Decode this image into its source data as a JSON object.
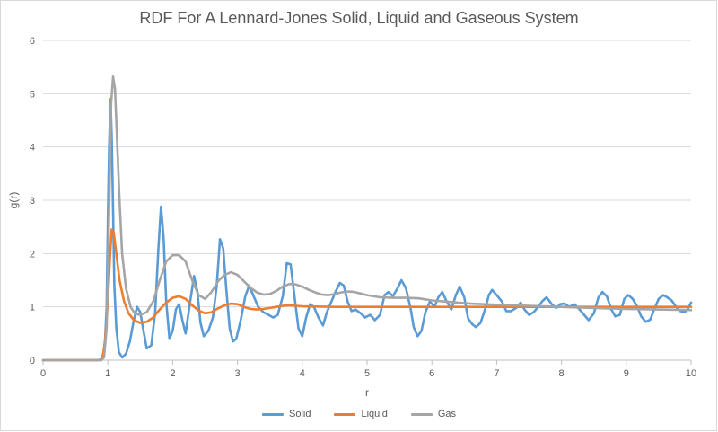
{
  "chart_data": {
    "type": "line",
    "title": "RDF For A Lennard-Jones Solid, Liquid and Gaseous System",
    "xlabel": "r",
    "ylabel": "g(r)",
    "xlim": [
      0,
      10
    ],
    "ylim": [
      0,
      6
    ],
    "x_ticks": [
      "0",
      "1",
      "2",
      "3",
      "4",
      "5",
      "6",
      "7",
      "8",
      "9",
      "10"
    ],
    "y_ticks": [
      "0",
      "1",
      "2",
      "3",
      "4",
      "5",
      "6"
    ],
    "grid": "horizontal",
    "legend_position": "bottom",
    "series": [
      {
        "name": "Solid",
        "color": "#5b9bd5",
        "points": [
          [
            0,
            0
          ],
          [
            0.85,
            0
          ],
          [
            0.9,
            0.02
          ],
          [
            0.95,
            0.2
          ],
          [
            0.98,
            1.0
          ],
          [
            1.0,
            2.6
          ],
          [
            1.02,
            4.0
          ],
          [
            1.04,
            4.9
          ],
          [
            1.06,
            4.2
          ],
          [
            1.08,
            2.8
          ],
          [
            1.1,
            1.4
          ],
          [
            1.13,
            0.6
          ],
          [
            1.17,
            0.15
          ],
          [
            1.22,
            0.05
          ],
          [
            1.28,
            0.12
          ],
          [
            1.34,
            0.35
          ],
          [
            1.4,
            0.75
          ],
          [
            1.45,
            1.0
          ],
          [
            1.5,
            0.9
          ],
          [
            1.55,
            0.55
          ],
          [
            1.6,
            0.22
          ],
          [
            1.67,
            0.28
          ],
          [
            1.73,
            0.9
          ],
          [
            1.78,
            2.1
          ],
          [
            1.82,
            2.88
          ],
          [
            1.86,
            2.3
          ],
          [
            1.9,
            1.1
          ],
          [
            1.95,
            0.4
          ],
          [
            2.0,
            0.55
          ],
          [
            2.05,
            0.95
          ],
          [
            2.1,
            1.05
          ],
          [
            2.15,
            0.75
          ],
          [
            2.2,
            0.5
          ],
          [
            2.27,
            1.1
          ],
          [
            2.33,
            1.58
          ],
          [
            2.38,
            1.3
          ],
          [
            2.43,
            0.7
          ],
          [
            2.48,
            0.45
          ],
          [
            2.55,
            0.55
          ],
          [
            2.62,
            0.8
          ],
          [
            2.68,
            1.4
          ],
          [
            2.73,
            2.27
          ],
          [
            2.78,
            2.1
          ],
          [
            2.83,
            1.3
          ],
          [
            2.88,
            0.6
          ],
          [
            2.93,
            0.35
          ],
          [
            2.98,
            0.4
          ],
          [
            3.05,
            0.75
          ],
          [
            3.12,
            1.2
          ],
          [
            3.18,
            1.4
          ],
          [
            3.25,
            1.2
          ],
          [
            3.32,
            1.0
          ],
          [
            3.4,
            0.9
          ],
          [
            3.48,
            0.85
          ],
          [
            3.55,
            0.8
          ],
          [
            3.62,
            0.85
          ],
          [
            3.7,
            1.2
          ],
          [
            3.76,
            1.82
          ],
          [
            3.82,
            1.8
          ],
          [
            3.88,
            1.2
          ],
          [
            3.94,
            0.6
          ],
          [
            4.0,
            0.45
          ],
          [
            4.06,
            0.8
          ],
          [
            4.12,
            1.05
          ],
          [
            4.18,
            1.0
          ],
          [
            4.25,
            0.8
          ],
          [
            4.32,
            0.65
          ],
          [
            4.38,
            0.9
          ],
          [
            4.45,
            1.1
          ],
          [
            4.52,
            1.3
          ],
          [
            4.58,
            1.45
          ],
          [
            4.64,
            1.4
          ],
          [
            4.7,
            1.1
          ],
          [
            4.76,
            0.92
          ],
          [
            4.82,
            0.95
          ],
          [
            4.9,
            0.88
          ],
          [
            4.97,
            0.8
          ],
          [
            5.05,
            0.85
          ],
          [
            5.12,
            0.75
          ],
          [
            5.2,
            0.85
          ],
          [
            5.27,
            1.22
          ],
          [
            5.33,
            1.28
          ],
          [
            5.4,
            1.2
          ],
          [
            5.47,
            1.35
          ],
          [
            5.53,
            1.5
          ],
          [
            5.6,
            1.35
          ],
          [
            5.67,
            0.98
          ],
          [
            5.72,
            0.62
          ],
          [
            5.78,
            0.45
          ],
          [
            5.84,
            0.55
          ],
          [
            5.9,
            0.9
          ],
          [
            5.97,
            1.1
          ],
          [
            6.04,
            1.0
          ],
          [
            6.1,
            1.18
          ],
          [
            6.16,
            1.28
          ],
          [
            6.22,
            1.12
          ],
          [
            6.3,
            0.95
          ],
          [
            6.37,
            1.22
          ],
          [
            6.43,
            1.38
          ],
          [
            6.5,
            1.18
          ],
          [
            6.56,
            0.78
          ],
          [
            6.62,
            0.68
          ],
          [
            6.68,
            0.62
          ],
          [
            6.75,
            0.7
          ],
          [
            6.82,
            0.95
          ],
          [
            6.88,
            1.22
          ],
          [
            6.93,
            1.32
          ],
          [
            7.0,
            1.22
          ],
          [
            7.08,
            1.1
          ],
          [
            7.15,
            0.92
          ],
          [
            7.22,
            0.92
          ],
          [
            7.3,
            0.98
          ],
          [
            7.37,
            1.08
          ],
          [
            7.43,
            0.95
          ],
          [
            7.5,
            0.85
          ],
          [
            7.57,
            0.9
          ],
          [
            7.64,
            1.0
          ],
          [
            7.7,
            1.1
          ],
          [
            7.77,
            1.18
          ],
          [
            7.85,
            1.05
          ],
          [
            7.92,
            0.98
          ],
          [
            7.98,
            1.05
          ],
          [
            8.05,
            1.06
          ],
          [
            8.12,
            1.0
          ],
          [
            8.2,
            1.05
          ],
          [
            8.28,
            0.95
          ],
          [
            8.35,
            0.85
          ],
          [
            8.42,
            0.75
          ],
          [
            8.5,
            0.88
          ],
          [
            8.57,
            1.18
          ],
          [
            8.63,
            1.28
          ],
          [
            8.7,
            1.2
          ],
          [
            8.77,
            0.95
          ],
          [
            8.83,
            0.82
          ],
          [
            8.9,
            0.85
          ],
          [
            8.97,
            1.15
          ],
          [
            9.03,
            1.22
          ],
          [
            9.1,
            1.15
          ],
          [
            9.17,
            1.0
          ],
          [
            9.23,
            0.82
          ],
          [
            9.3,
            0.72
          ],
          [
            9.37,
            0.76
          ],
          [
            9.43,
            0.95
          ],
          [
            9.5,
            1.15
          ],
          [
            9.57,
            1.22
          ],
          [
            9.63,
            1.18
          ],
          [
            9.7,
            1.12
          ],
          [
            9.77,
            1.0
          ],
          [
            9.83,
            0.92
          ],
          [
            9.9,
            0.9
          ],
          [
            9.95,
            0.96
          ],
          [
            10.0,
            1.08
          ]
        ]
      },
      {
        "name": "Liquid",
        "color": "#ed7d31",
        "points": [
          [
            0,
            0
          ],
          [
            0.88,
            0
          ],
          [
            0.92,
            0.04
          ],
          [
            0.96,
            0.4
          ],
          [
            1.0,
            1.1
          ],
          [
            1.03,
            1.9
          ],
          [
            1.06,
            2.45
          ],
          [
            1.09,
            2.4
          ],
          [
            1.13,
            2.0
          ],
          [
            1.18,
            1.5
          ],
          [
            1.25,
            1.1
          ],
          [
            1.32,
            0.88
          ],
          [
            1.4,
            0.75
          ],
          [
            1.5,
            0.7
          ],
          [
            1.6,
            0.72
          ],
          [
            1.7,
            0.8
          ],
          [
            1.8,
            0.95
          ],
          [
            1.9,
            1.08
          ],
          [
            2.0,
            1.17
          ],
          [
            2.1,
            1.2
          ],
          [
            2.2,
            1.15
          ],
          [
            2.3,
            1.03
          ],
          [
            2.4,
            0.93
          ],
          [
            2.5,
            0.88
          ],
          [
            2.6,
            0.9
          ],
          [
            2.7,
            0.97
          ],
          [
            2.8,
            1.03
          ],
          [
            2.9,
            1.06
          ],
          [
            3.0,
            1.05
          ],
          [
            3.1,
            1.0
          ],
          [
            3.2,
            0.96
          ],
          [
            3.3,
            0.95
          ],
          [
            3.4,
            0.96
          ],
          [
            3.5,
            0.98
          ],
          [
            3.6,
            1.0
          ],
          [
            3.7,
            1.02
          ],
          [
            3.8,
            1.03
          ],
          [
            3.9,
            1.02
          ],
          [
            4.0,
            1.01
          ],
          [
            4.5,
            1.0
          ],
          [
            5.0,
            1.0
          ],
          [
            6.0,
            1.0
          ],
          [
            7.0,
            1.0
          ],
          [
            8.0,
            1.0
          ],
          [
            9.0,
            1.0
          ],
          [
            10.0,
            1.0
          ]
        ]
      },
      {
        "name": "Gas",
        "color": "#a5a5a5",
        "points": [
          [
            0,
            0
          ],
          [
            0.9,
            0
          ],
          [
            0.94,
            0.05
          ],
          [
            0.98,
            0.6
          ],
          [
            1.02,
            2.8
          ],
          [
            1.05,
            4.8
          ],
          [
            1.08,
            5.32
          ],
          [
            1.11,
            5.1
          ],
          [
            1.14,
            4.2
          ],
          [
            1.18,
            3.0
          ],
          [
            1.22,
            2.0
          ],
          [
            1.28,
            1.35
          ],
          [
            1.35,
            1.0
          ],
          [
            1.42,
            0.87
          ],
          [
            1.5,
            0.85
          ],
          [
            1.6,
            0.9
          ],
          [
            1.7,
            1.1
          ],
          [
            1.8,
            1.5
          ],
          [
            1.9,
            1.85
          ],
          [
            2.0,
            1.97
          ],
          [
            2.1,
            1.97
          ],
          [
            2.2,
            1.85
          ],
          [
            2.3,
            1.5
          ],
          [
            2.4,
            1.22
          ],
          [
            2.5,
            1.15
          ],
          [
            2.6,
            1.28
          ],
          [
            2.7,
            1.48
          ],
          [
            2.8,
            1.6
          ],
          [
            2.9,
            1.65
          ],
          [
            3.0,
            1.6
          ],
          [
            3.1,
            1.48
          ],
          [
            3.2,
            1.36
          ],
          [
            3.3,
            1.27
          ],
          [
            3.4,
            1.23
          ],
          [
            3.5,
            1.24
          ],
          [
            3.6,
            1.3
          ],
          [
            3.7,
            1.38
          ],
          [
            3.8,
            1.43
          ],
          [
            3.9,
            1.42
          ],
          [
            4.0,
            1.38
          ],
          [
            4.1,
            1.32
          ],
          [
            4.2,
            1.27
          ],
          [
            4.3,
            1.23
          ],
          [
            4.4,
            1.22
          ],
          [
            4.5,
            1.24
          ],
          [
            4.6,
            1.27
          ],
          [
            4.7,
            1.29
          ],
          [
            4.8,
            1.28
          ],
          [
            4.9,
            1.25
          ],
          [
            5.0,
            1.22
          ],
          [
            5.2,
            1.18
          ],
          [
            5.4,
            1.17
          ],
          [
            5.6,
            1.17
          ],
          [
            5.8,
            1.16
          ],
          [
            6.0,
            1.12
          ],
          [
            6.2,
            1.1
          ],
          [
            6.4,
            1.08
          ],
          [
            6.6,
            1.06
          ],
          [
            6.8,
            1.05
          ],
          [
            7.0,
            1.04
          ],
          [
            7.5,
            1.02
          ],
          [
            8.0,
            1.0
          ],
          [
            8.5,
            0.98
          ],
          [
            9.0,
            0.96
          ],
          [
            9.5,
            0.95
          ],
          [
            10.0,
            0.94
          ]
        ]
      }
    ]
  }
}
